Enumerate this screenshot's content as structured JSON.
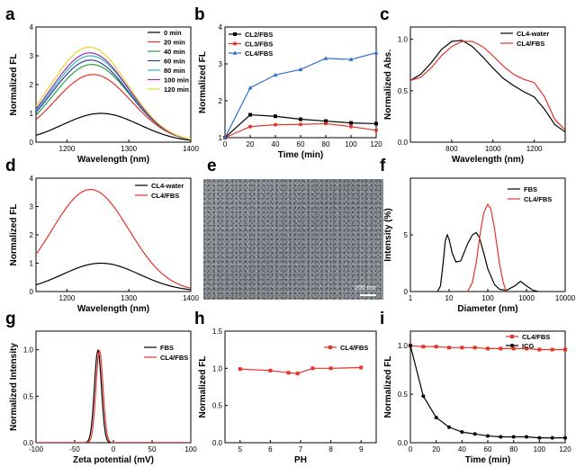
{
  "chart_data": [
    {
      "id": "a",
      "panel_letter": "a",
      "type": "line",
      "xlabel": "Wavelength (nm)",
      "ylabel": "Normalized FL",
      "xlim": [
        1150,
        1400
      ],
      "ylim": [
        0,
        4
      ],
      "xticks": [
        1200,
        1300,
        1400
      ],
      "yticks": [
        0,
        1,
        2,
        3,
        4
      ],
      "legend_position": "top-right",
      "curve_model": "gaussian",
      "peak_x": [
        1255,
        1242,
        1240,
        1238,
        1238,
        1237,
        1236
      ],
      "width_nm": 62,
      "series": [
        {
          "name": "0 min",
          "color": "#000000",
          "peak": 1.0
        },
        {
          "name": "20 min",
          "color": "#e5332a",
          "peak": 2.35
        },
        {
          "name": "40 min",
          "color": "#2a9e47",
          "peak": 2.7
        },
        {
          "name": "60 min",
          "color": "#2e3f9e",
          "peak": 2.85
        },
        {
          "name": "80 min",
          "color": "#35b2c9",
          "peak": 3.0
        },
        {
          "name": "100 min",
          "color": "#9b2fa0",
          "peak": 3.1
        },
        {
          "name": "120 min",
          "color": "#e8d52c",
          "peak": 3.3
        }
      ]
    },
    {
      "id": "b",
      "panel_letter": "b",
      "type": "line",
      "xlabel": "Time (min)",
      "ylabel": "Normalized FL",
      "xlim": [
        0,
        120
      ],
      "ylim": [
        1,
        4
      ],
      "xticks": [
        0,
        20,
        40,
        60,
        80,
        100,
        120
      ],
      "yticks": [
        1,
        2,
        3,
        4
      ],
      "legend_position": "top-left",
      "x": [
        0,
        20,
        40,
        60,
        80,
        100,
        120
      ],
      "series": [
        {
          "name": "CL2/FBS",
          "color": "#000000",
          "marker": "square",
          "values": [
            1.0,
            1.62,
            1.58,
            1.5,
            1.45,
            1.4,
            1.38
          ]
        },
        {
          "name": "CL3/FBS",
          "color": "#e5332a",
          "marker": "circle",
          "values": [
            1.0,
            1.3,
            1.35,
            1.36,
            1.38,
            1.3,
            1.2
          ]
        },
        {
          "name": "CL4/FBS",
          "color": "#2d6fd0",
          "marker": "triangle",
          "values": [
            1.0,
            2.35,
            2.7,
            2.85,
            3.15,
            3.12,
            3.3
          ]
        }
      ]
    },
    {
      "id": "c",
      "panel_letter": "c",
      "type": "line",
      "xlabel": "Wavelength (nm)",
      "ylabel": "Normalized Abs.",
      "xlim": [
        600,
        1350
      ],
      "ylim": [
        0,
        1.12
      ],
      "xticks": [
        800,
        1000,
        1200
      ],
      "yticks": [
        0.0,
        0.5,
        1.0
      ],
      "legend_position": "top-right",
      "series": [
        {
          "name": "CL4-water",
          "color": "#000000",
          "x": [
            600,
            650,
            700,
            750,
            800,
            850,
            900,
            950,
            1000,
            1050,
            1100,
            1150,
            1200,
            1250,
            1300,
            1350
          ],
          "values": [
            0.6,
            0.66,
            0.77,
            0.9,
            0.98,
            0.99,
            0.93,
            0.83,
            0.72,
            0.62,
            0.55,
            0.49,
            0.44,
            0.32,
            0.17,
            0.1
          ]
        },
        {
          "name": "CL4/FBS",
          "color": "#e5332a",
          "x": [
            600,
            650,
            700,
            750,
            800,
            850,
            900,
            950,
            1000,
            1050,
            1100,
            1150,
            1200,
            1250,
            1300,
            1350
          ],
          "values": [
            0.6,
            0.63,
            0.72,
            0.84,
            0.93,
            0.98,
            0.98,
            0.93,
            0.84,
            0.74,
            0.66,
            0.61,
            0.58,
            0.44,
            0.22,
            0.12
          ]
        }
      ]
    },
    {
      "id": "d",
      "panel_letter": "d",
      "type": "line",
      "xlabel": "Wavelength (nm)",
      "ylabel": "Normalized FL",
      "xlim": [
        1150,
        1400
      ],
      "ylim": [
        0,
        4
      ],
      "xticks": [
        1200,
        1300,
        1400
      ],
      "yticks": [
        0,
        1,
        2,
        3,
        4
      ],
      "legend_position": "top-right",
      "curve_model": "gaussian",
      "peak_x": [
        1255,
        1238
      ],
      "width_nm": 62,
      "series": [
        {
          "name": "CL4-water",
          "color": "#000000",
          "peak": 1.0
        },
        {
          "name": "CL4/FBS",
          "color": "#e5332a",
          "peak": 3.6
        }
      ]
    },
    {
      "id": "f",
      "panel_letter": "f",
      "type": "line",
      "xlabel": "Diameter (nm)",
      "ylabel": "Intensity (%)",
      "xscale": "log",
      "xlim": [
        1,
        10000
      ],
      "ylim": [
        0,
        10
      ],
      "xticks": [
        1,
        10,
        100,
        1000,
        10000
      ],
      "yticks": [
        0,
        5
      ],
      "legend_position": "top-left",
      "series": [
        {
          "name": "FBS",
          "color": "#000000",
          "x": [
            5,
            6,
            7,
            8,
            9,
            10,
            12,
            15,
            20,
            30,
            40,
            50,
            60,
            80,
            100,
            150,
            200,
            300,
            500,
            700,
            1000,
            1500,
            2000
          ],
          "values": [
            0,
            0.5,
            2.5,
            4.5,
            5.0,
            4.6,
            3.4,
            2.6,
            2.7,
            4.2,
            5.0,
            5.2,
            4.8,
            3.3,
            2.0,
            0.6,
            0.2,
            0.1,
            0.5,
            0.9,
            0.5,
            0.1,
            0
          ]
        },
        {
          "name": "CL4/FBS",
          "color": "#e5332a",
          "x": [
            30,
            40,
            50,
            60,
            70,
            80,
            100,
            120,
            150,
            200,
            250,
            300
          ],
          "values": [
            0,
            0.8,
            2.5,
            4.5,
            6.0,
            7.0,
            7.7,
            7.3,
            5.5,
            2.5,
            0.8,
            0
          ]
        }
      ]
    },
    {
      "id": "g",
      "panel_letter": "g",
      "type": "line",
      "xlabel": "Zeta potential (mV)",
      "ylabel": "Normalized Intensity",
      "xlim": [
        -100,
        100
      ],
      "ylim": [
        0,
        1.2
      ],
      "xticks": [
        -100,
        -50,
        0,
        50,
        100
      ],
      "yticks": [
        0.0,
        0.5,
        1.0
      ],
      "legend_position": "top-right",
      "curve_model": "gaussian",
      "peak_x": [
        -20,
        -18
      ],
      "width_nm": 4.5,
      "series": [
        {
          "name": "FBS",
          "color": "#000000",
          "peak": 1.0
        },
        {
          "name": "CL4/FBS",
          "color": "#e5332a",
          "peak": 1.0
        }
      ]
    },
    {
      "id": "h",
      "panel_letter": "h",
      "type": "line",
      "xlabel": "PH",
      "ylabel": "Normalized FL",
      "xlim": [
        4.5,
        9.5
      ],
      "ylim": [
        0,
        1.5
      ],
      "xticks": [
        5,
        6,
        7,
        8,
        9
      ],
      "yticks": [
        0.0,
        0.5,
        1.0,
        1.5
      ],
      "legend_position": "top-right",
      "x": [
        5,
        6,
        6.6,
        6.9,
        7.4,
        8,
        9
      ],
      "series": [
        {
          "name": "CL4/FBS",
          "color": "#e5332a",
          "marker": "square",
          "values": [
            0.99,
            0.97,
            0.94,
            0.93,
            1.0,
            1.0,
            1.01
          ]
        }
      ]
    },
    {
      "id": "i",
      "panel_letter": "i",
      "type": "line",
      "xlabel": "Time (min)",
      "ylabel": "Normalized FL",
      "xlim": [
        0,
        120
      ],
      "ylim": [
        0,
        1.15
      ],
      "xticks": [
        0,
        20,
        40,
        60,
        80,
        100,
        120
      ],
      "yticks": [
        0.0,
        0.5,
        1.0
      ],
      "legend_position": "top-right",
      "x": [
        0,
        10,
        20,
        30,
        40,
        50,
        60,
        70,
        80,
        90,
        100,
        110,
        120
      ],
      "series": [
        {
          "name": "CL4/FBS",
          "color": "#e5332a",
          "marker": "square",
          "values": [
            1.0,
            0.99,
            0.99,
            0.98,
            0.98,
            0.98,
            0.97,
            0.97,
            0.97,
            0.97,
            0.96,
            0.96,
            0.96
          ]
        },
        {
          "name": "ICG",
          "color": "#000000",
          "marker": "circle",
          "values": [
            1.0,
            0.48,
            0.26,
            0.16,
            0.11,
            0.09,
            0.07,
            0.06,
            0.06,
            0.06,
            0.05,
            0.05,
            0.05
          ]
        }
      ]
    }
  ],
  "image_panel": {
    "panel_letter": "e",
    "scale_label": "200 nm"
  }
}
